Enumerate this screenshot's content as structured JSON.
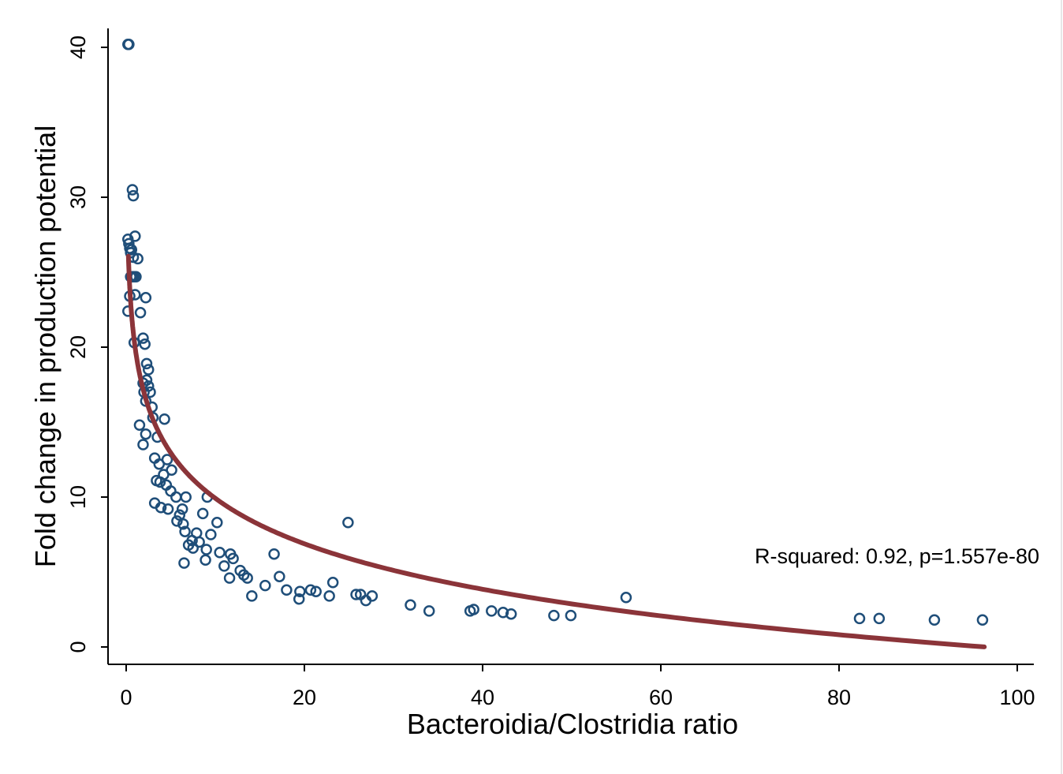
{
  "chart_data": {
    "type": "scatter",
    "xlabel": "Bacteroidia/Clostridia ratio",
    "ylabel": "Fold change in production potential",
    "xlim": [
      -2.5,
      101.5
    ],
    "ylim": [
      -1.5,
      42.5
    ],
    "x_ticks": [
      0,
      20,
      40,
      60,
      80,
      100
    ],
    "y_ticks": [
      0,
      10,
      20,
      30,
      40
    ],
    "grid": false,
    "annotation": "R-squared: 0.92, p=1.557e-80",
    "colors": {
      "points": "#1f4e79",
      "fit": "#8b3439",
      "axis": "#000000"
    },
    "fit_curve": {
      "equation": "y = 20.0 - 4.378 * ln(x) + 1.0e-6 * x",
      "a": 20.0,
      "b": -4.378,
      "c": 0.0,
      "x_range": [
        0.25,
        96.3
      ]
    },
    "series": [
      {
        "marker": "hollow-circle",
        "points": [
          [
            0.2,
            40.2
          ],
          [
            0.3,
            40.2
          ],
          [
            0.7,
            30.5
          ],
          [
            0.8,
            30.1
          ],
          [
            0.2,
            27.2
          ],
          [
            0.3,
            26.9
          ],
          [
            0.4,
            26.6
          ],
          [
            0.5,
            26.3
          ],
          [
            0.6,
            26.5
          ],
          [
            0.8,
            26.0
          ],
          [
            1.0,
            27.4
          ],
          [
            1.3,
            25.9
          ],
          [
            0.5,
            24.7
          ],
          [
            0.7,
            24.7
          ],
          [
            0.9,
            24.7
          ],
          [
            1.1,
            24.7
          ],
          [
            0.4,
            23.4
          ],
          [
            0.2,
            22.4
          ],
          [
            1.0,
            23.5
          ],
          [
            2.2,
            23.3
          ],
          [
            1.6,
            22.3
          ],
          [
            0.9,
            20.3
          ],
          [
            1.9,
            20.6
          ],
          [
            2.1,
            20.2
          ],
          [
            2.3,
            18.9
          ],
          [
            2.5,
            18.5
          ],
          [
            1.9,
            17.6
          ],
          [
            2.3,
            17.8
          ],
          [
            2.5,
            17.4
          ],
          [
            2.0,
            17.0
          ],
          [
            2.7,
            17.0
          ],
          [
            2.2,
            16.4
          ],
          [
            2.9,
            16.0
          ],
          [
            3.0,
            15.3
          ],
          [
            4.3,
            15.2
          ],
          [
            1.5,
            14.8
          ],
          [
            2.2,
            14.2
          ],
          [
            3.5,
            14.0
          ],
          [
            1.9,
            13.5
          ],
          [
            3.2,
            12.6
          ],
          [
            4.6,
            12.5
          ],
          [
            3.7,
            12.2
          ],
          [
            5.1,
            11.8
          ],
          [
            4.2,
            11.5
          ],
          [
            3.4,
            11.1
          ],
          [
            3.8,
            11.0
          ],
          [
            4.5,
            10.8
          ],
          [
            5.0,
            10.4
          ],
          [
            5.6,
            10.0
          ],
          [
            6.7,
            10.0
          ],
          [
            9.1,
            10.0
          ],
          [
            3.2,
            9.6
          ],
          [
            3.9,
            9.3
          ],
          [
            4.7,
            9.2
          ],
          [
            6.3,
            9.2
          ],
          [
            6.0,
            8.8
          ],
          [
            8.6,
            8.9
          ],
          [
            5.7,
            8.4
          ],
          [
            6.4,
            8.2
          ],
          [
            10.2,
            8.3
          ],
          [
            6.6,
            7.7
          ],
          [
            7.9,
            7.6
          ],
          [
            9.5,
            7.5
          ],
          [
            7.4,
            7.1
          ],
          [
            8.2,
            7.0
          ],
          [
            7.0,
            6.8
          ],
          [
            7.5,
            6.6
          ],
          [
            9.0,
            6.5
          ],
          [
            10.5,
            6.3
          ],
          [
            11.7,
            6.2
          ],
          [
            12.0,
            5.9
          ],
          [
            8.9,
            5.8
          ],
          [
            6.5,
            5.6
          ],
          [
            11.0,
            5.4
          ],
          [
            12.8,
            5.1
          ],
          [
            13.2,
            4.8
          ],
          [
            11.6,
            4.6
          ],
          [
            13.6,
            4.6
          ],
          [
            14.1,
            3.4
          ],
          [
            16.6,
            6.2
          ],
          [
            17.2,
            4.7
          ],
          [
            18.0,
            3.8
          ],
          [
            15.6,
            4.1
          ],
          [
            19.5,
            3.7
          ],
          [
            19.4,
            3.2
          ],
          [
            20.7,
            3.8
          ],
          [
            21.3,
            3.7
          ],
          [
            23.2,
            4.3
          ],
          [
            22.8,
            3.4
          ],
          [
            24.9,
            8.3
          ],
          [
            25.8,
            3.5
          ],
          [
            26.3,
            3.5
          ],
          [
            26.9,
            3.1
          ],
          [
            27.6,
            3.4
          ],
          [
            31.9,
            2.8
          ],
          [
            34.0,
            2.4
          ],
          [
            38.6,
            2.4
          ],
          [
            39.0,
            2.5
          ],
          [
            41.0,
            2.4
          ],
          [
            42.3,
            2.3
          ],
          [
            43.2,
            2.2
          ],
          [
            48.0,
            2.1
          ],
          [
            49.9,
            2.1
          ],
          [
            56.1,
            3.3
          ],
          [
            82.3,
            1.9
          ],
          [
            84.5,
            1.9
          ],
          [
            90.7,
            1.8
          ],
          [
            96.1,
            1.8
          ]
        ]
      }
    ]
  }
}
